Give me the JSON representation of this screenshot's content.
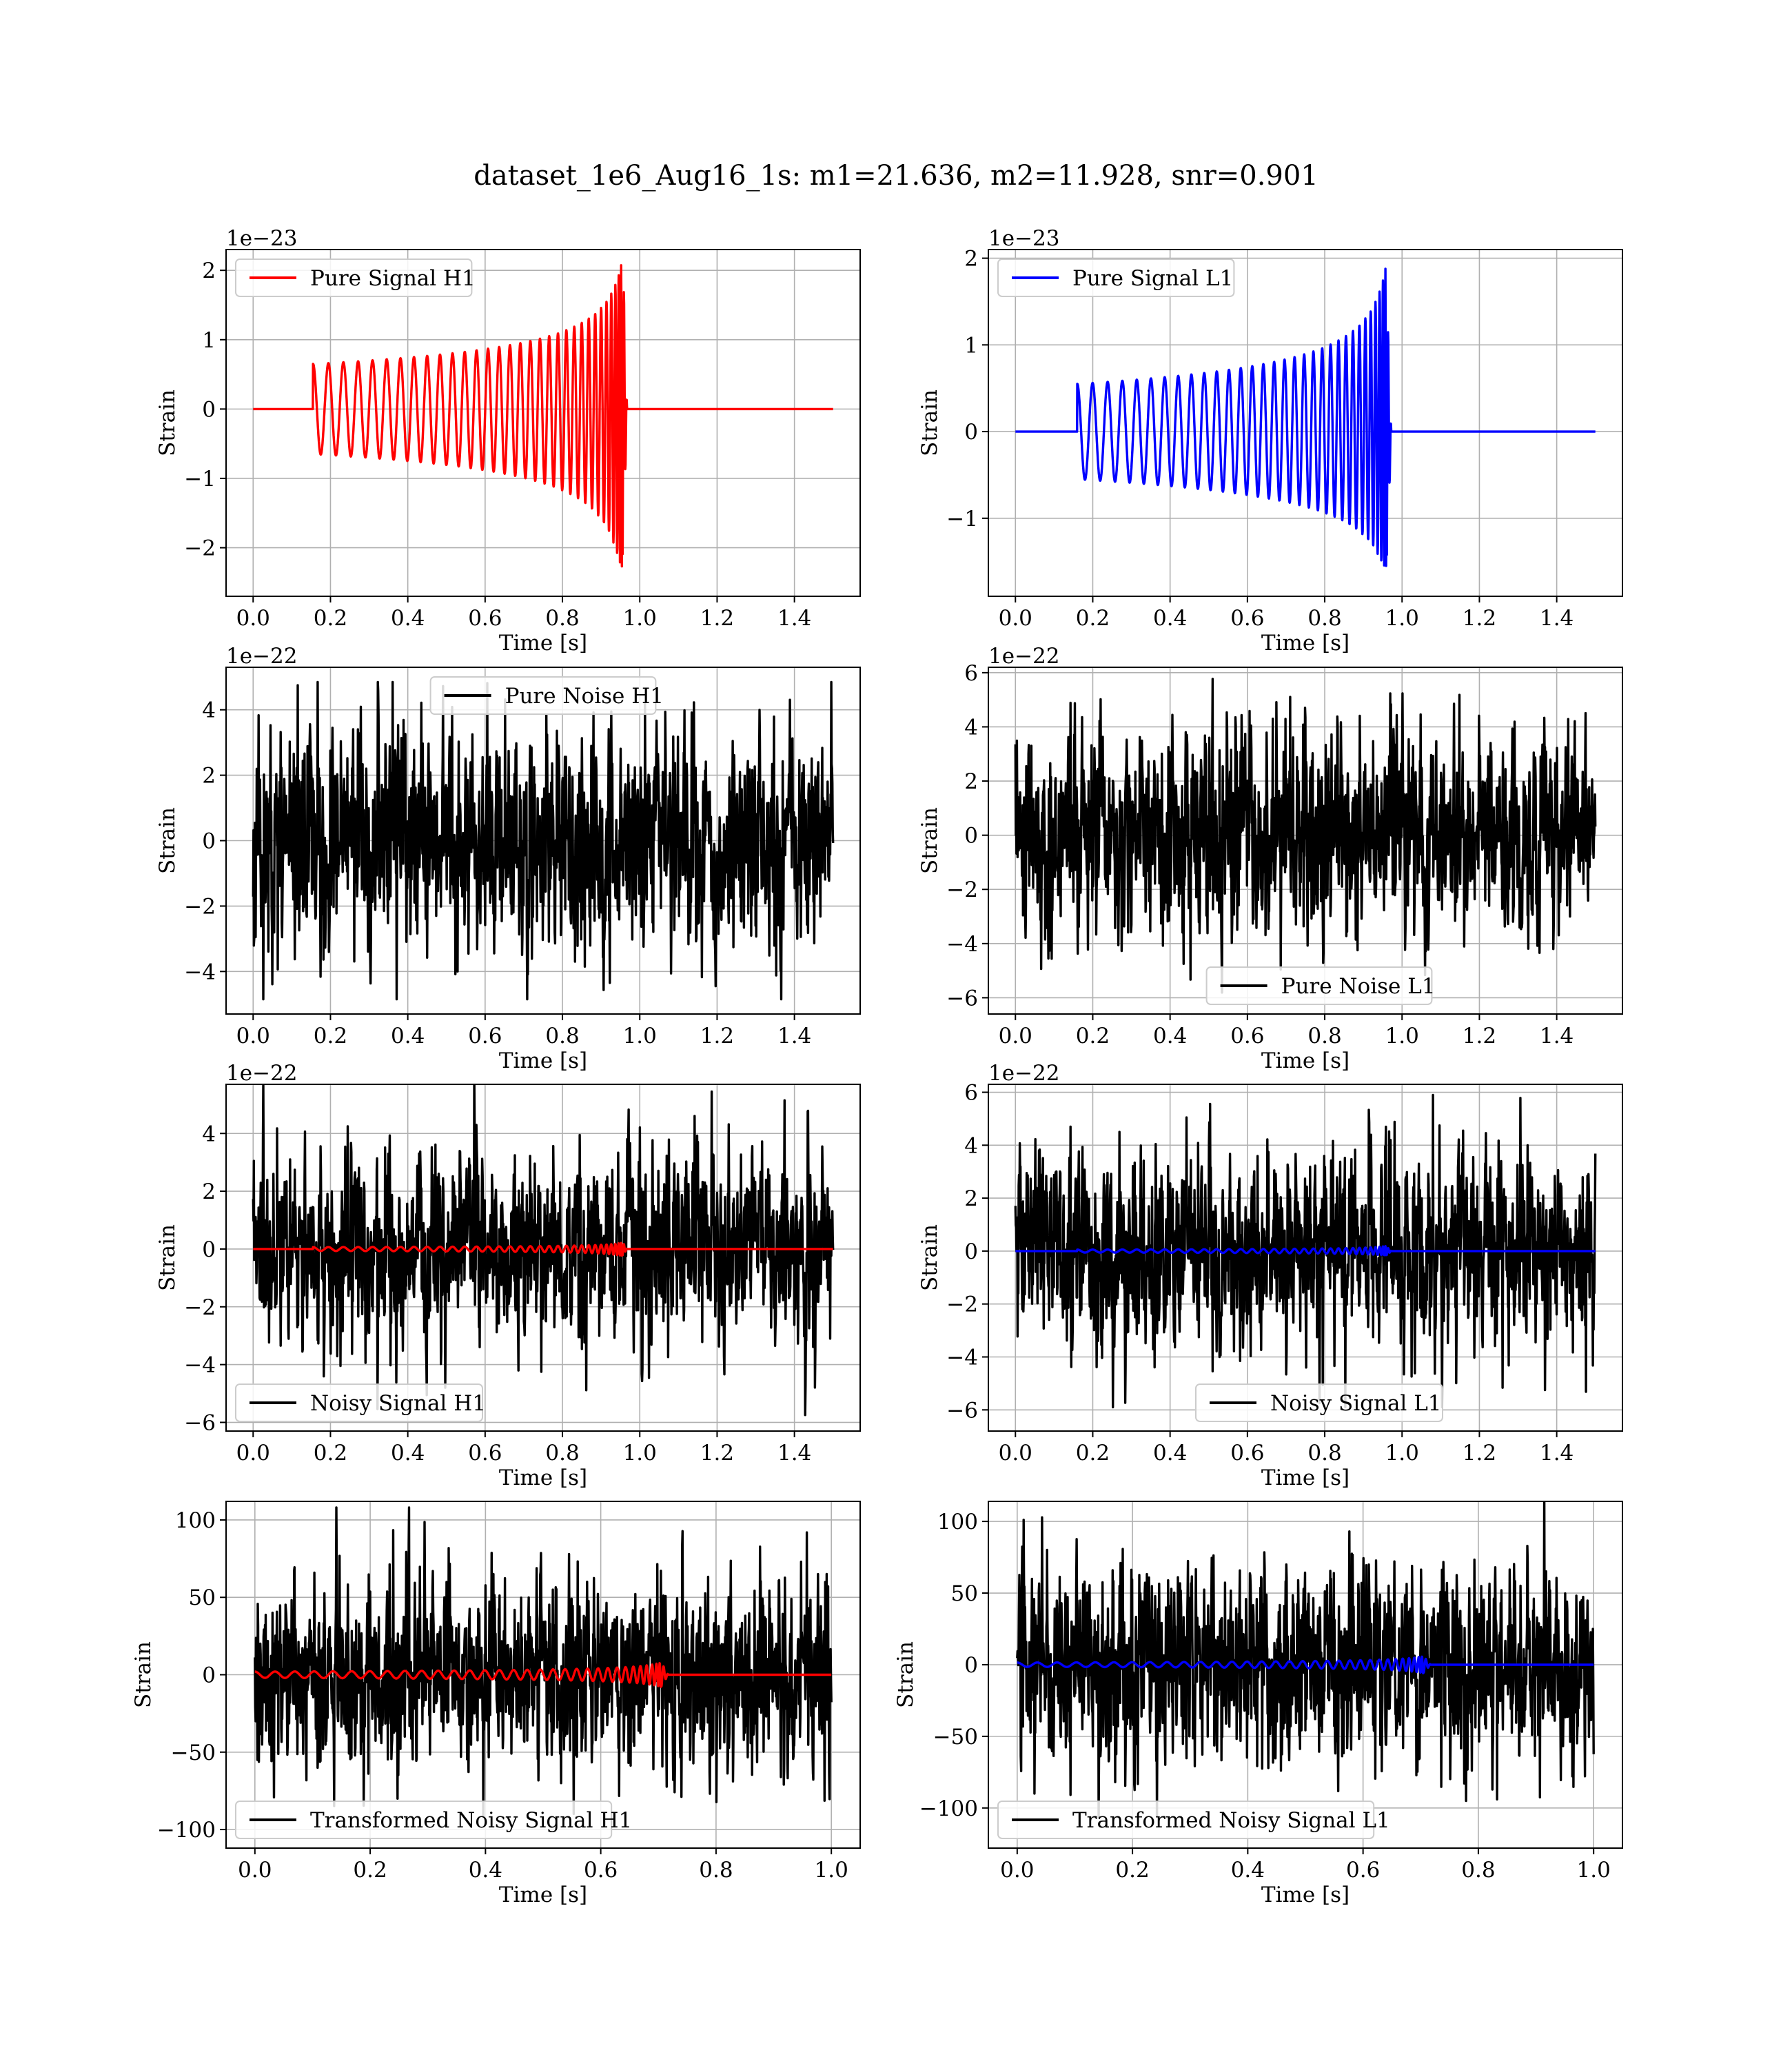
{
  "figure": {
    "title": "dataset_1e6_Aug16_1s: m1=21.636, m2=11.928, snr=0.901"
  },
  "colors": {
    "h1": "#ff0000",
    "l1": "#0000ff",
    "noise": "#000000"
  },
  "chart_data": [
    {
      "id": "pure-signal-h1",
      "type": "line",
      "xlabel": "Time [s]",
      "ylabel": "Strain",
      "offset_label": "1e−23",
      "xlim": [
        -0.07,
        1.57
      ],
      "ylim": [
        -2.7,
        2.3
      ],
      "xticks": [
        0.0,
        0.2,
        0.4,
        0.6,
        0.8,
        1.0,
        1.2,
        1.4
      ],
      "xtick_labels": [
        "0.0",
        "0.2",
        "0.4",
        "0.6",
        "0.8",
        "1.0",
        "1.2",
        "1.4"
      ],
      "yticks": [
        -2,
        -1,
        0,
        1,
        2
      ],
      "ytick_labels": [
        "−2",
        "−1",
        "0",
        "1",
        "2"
      ],
      "grid": true,
      "legend_position": "upper-left",
      "series": [
        {
          "name": "Pure Signal H1",
          "kind": "chirp",
          "color": "#ff0000",
          "x_range": [
            0.0,
            1.5
          ],
          "t_start": 0.155,
          "t_merge": 0.955,
          "amp_start": 0.65,
          "amp_peak_pos": 2.15,
          "amp_peak_neg": -2.5,
          "cycles": 32
        }
      ]
    },
    {
      "id": "pure-signal-l1",
      "type": "line",
      "xlabel": "Time [s]",
      "ylabel": "Strain",
      "offset_label": "1e−23",
      "xlim": [
        -0.07,
        1.57
      ],
      "ylim": [
        -1.9,
        2.1
      ],
      "xticks": [
        0.0,
        0.2,
        0.4,
        0.6,
        0.8,
        1.0,
        1.2,
        1.4
      ],
      "xtick_labels": [
        "0.0",
        "0.2",
        "0.4",
        "0.6",
        "0.8",
        "1.0",
        "1.2",
        "1.4"
      ],
      "yticks": [
        -1,
        0,
        1,
        2
      ],
      "ytick_labels": [
        "−1",
        "0",
        "1",
        "2"
      ],
      "grid": true,
      "legend_position": "upper-left",
      "series": [
        {
          "name": "Pure Signal L1",
          "kind": "chirp",
          "color": "#0000ff",
          "x_range": [
            0.0,
            1.5
          ],
          "t_start": 0.16,
          "t_merge": 0.96,
          "amp_start": 0.55,
          "amp_peak_pos": 1.95,
          "amp_peak_neg": -1.7,
          "cycles": 32
        }
      ]
    },
    {
      "id": "pure-noise-h1",
      "type": "line",
      "xlabel": "Time [s]",
      "ylabel": "Strain",
      "offset_label": "1e−22",
      "xlim": [
        -0.07,
        1.57
      ],
      "ylim": [
        -5.3,
        5.3
      ],
      "xticks": [
        0.0,
        0.2,
        0.4,
        0.6,
        0.8,
        1.0,
        1.2,
        1.4
      ],
      "xtick_labels": [
        "0.0",
        "0.2",
        "0.4",
        "0.6",
        "0.8",
        "1.0",
        "1.2",
        "1.4"
      ],
      "yticks": [
        -4,
        -2,
        0,
        2,
        4
      ],
      "ytick_labels": [
        "−4",
        "−2",
        "0",
        "2",
        "4"
      ],
      "grid": true,
      "legend_position": "upper-center",
      "series": [
        {
          "name": "Pure Noise H1",
          "kind": "noise",
          "color": "#000000",
          "x_range": [
            0.0,
            1.5
          ],
          "sigma": 1.6,
          "max_abs": 4.85,
          "seed": 11
        }
      ]
    },
    {
      "id": "pure-noise-l1",
      "type": "line",
      "xlabel": "Time [s]",
      "ylabel": "Strain",
      "offset_label": "1e−22",
      "xlim": [
        -0.07,
        1.57
      ],
      "ylim": [
        -6.6,
        6.2
      ],
      "xticks": [
        0.0,
        0.2,
        0.4,
        0.6,
        0.8,
        1.0,
        1.2,
        1.4
      ],
      "xtick_labels": [
        "0.0",
        "0.2",
        "0.4",
        "0.6",
        "0.8",
        "1.0",
        "1.2",
        "1.4"
      ],
      "yticks": [
        -6,
        -4,
        -2,
        0,
        2,
        4,
        6
      ],
      "ytick_labels": [
        "−6",
        "−4",
        "−2",
        "0",
        "2",
        "4",
        "6"
      ],
      "grid": true,
      "legend_position": "lower-center",
      "series": [
        {
          "name": "Pure Noise L1",
          "kind": "noise",
          "color": "#000000",
          "x_range": [
            0.0,
            1.5
          ],
          "sigma": 1.8,
          "max_abs": 6.0,
          "seed": 23
        }
      ]
    },
    {
      "id": "noisy-signal-h1",
      "type": "line",
      "xlabel": "Time [s]",
      "ylabel": "Strain",
      "offset_label": "1e−22",
      "xlim": [
        -0.07,
        1.57
      ],
      "ylim": [
        -6.3,
        5.7
      ],
      "xticks": [
        0.0,
        0.2,
        0.4,
        0.6,
        0.8,
        1.0,
        1.2,
        1.4
      ],
      "xtick_labels": [
        "0.0",
        "0.2",
        "0.4",
        "0.6",
        "0.8",
        "1.0",
        "1.2",
        "1.4"
      ],
      "yticks": [
        -6,
        -4,
        -2,
        0,
        2,
        4
      ],
      "ytick_labels": [
        "−6",
        "−4",
        "−2",
        "0",
        "2",
        "4"
      ],
      "grid": true,
      "legend_position": "lower-left",
      "series": [
        {
          "name": "Noisy Signal H1",
          "kind": "noise",
          "color": "#000000",
          "x_range": [
            0.0,
            1.5
          ],
          "sigma": 1.6,
          "max_abs": 6.0,
          "seed": 37
        },
        {
          "name": "",
          "kind": "chirp",
          "color": "#ff0000",
          "x_range": [
            0.0,
            1.5
          ],
          "t_start": 0.155,
          "t_merge": 0.955,
          "amp_start": 0.065,
          "amp_peak_pos": 0.215,
          "amp_peak_neg": -0.25,
          "cycles": 32
        }
      ]
    },
    {
      "id": "noisy-signal-l1",
      "type": "line",
      "xlabel": "Time [s]",
      "ylabel": "Strain",
      "offset_label": "1e−22",
      "xlim": [
        -0.07,
        1.57
      ],
      "ylim": [
        -6.8,
        6.3
      ],
      "xticks": [
        0.0,
        0.2,
        0.4,
        0.6,
        0.8,
        1.0,
        1.2,
        1.4
      ],
      "xtick_labels": [
        "0.0",
        "0.2",
        "0.4",
        "0.6",
        "0.8",
        "1.0",
        "1.2",
        "1.4"
      ],
      "yticks": [
        -6,
        -4,
        -2,
        0,
        2,
        4,
        6
      ],
      "ytick_labels": [
        "−6",
        "−4",
        "−2",
        "0",
        "2",
        "4",
        "6"
      ],
      "grid": true,
      "legend_position": "lower-center",
      "series": [
        {
          "name": "Noisy Signal L1",
          "kind": "noise",
          "color": "#000000",
          "x_range": [
            0.0,
            1.5
          ],
          "sigma": 1.8,
          "max_abs": 5.9,
          "seed": 53
        },
        {
          "name": "",
          "kind": "chirp",
          "color": "#0000ff",
          "x_range": [
            0.0,
            1.5
          ],
          "t_start": 0.16,
          "t_merge": 0.96,
          "amp_start": 0.055,
          "amp_peak_pos": 0.195,
          "amp_peak_neg": -0.17,
          "cycles": 32
        }
      ]
    },
    {
      "id": "transformed-noisy-signal-h1",
      "type": "line",
      "xlabel": "Time [s]",
      "ylabel": "Strain",
      "offset_label": "",
      "xlim": [
        -0.05,
        1.05
      ],
      "ylim": [
        -112,
        112
      ],
      "xticks": [
        0.0,
        0.2,
        0.4,
        0.6,
        0.8,
        1.0
      ],
      "xtick_labels": [
        "0.0",
        "0.2",
        "0.4",
        "0.6",
        "0.8",
        "1.0"
      ],
      "yticks": [
        -100,
        -50,
        0,
        50,
        100
      ],
      "ytick_labels": [
        "−100",
        "−50",
        "0",
        "50",
        "100"
      ],
      "grid": true,
      "legend_position": "lower-left",
      "series": [
        {
          "name": "Transformed Noisy Signal H1",
          "kind": "noise",
          "color": "#000000",
          "x_range": [
            0.0,
            1.0
          ],
          "sigma": 30,
          "max_abs": 108,
          "seed": 71
        },
        {
          "name": "",
          "kind": "chirp",
          "color": "#ff0000",
          "x_range": [
            0.0,
            1.0
          ],
          "t_start": 0.0,
          "t_merge": 0.705,
          "amp_start": 2.0,
          "amp_peak_pos": 8.0,
          "amp_peak_neg": -8.0,
          "cycles": 32
        }
      ]
    },
    {
      "id": "transformed-noisy-signal-l1",
      "type": "line",
      "xlabel": "Time [s]",
      "ylabel": "Strain",
      "offset_label": "",
      "xlim": [
        -0.05,
        1.05
      ],
      "ylim": [
        -128,
        114
      ],
      "xticks": [
        0.0,
        0.2,
        0.4,
        0.6,
        0.8,
        1.0
      ],
      "xtick_labels": [
        "0.0",
        "0.2",
        "0.4",
        "0.6",
        "0.8",
        "1.0"
      ],
      "yticks": [
        -100,
        -50,
        0,
        50,
        100
      ],
      "ytick_labels": [
        "−100",
        "−50",
        "0",
        "50",
        "100"
      ],
      "grid": true,
      "legend_position": "lower-left",
      "series": [
        {
          "name": "Transformed Noisy Signal L1",
          "kind": "noise",
          "color": "#000000",
          "x_range": [
            0.0,
            1.0
          ],
          "sigma": 32,
          "max_abs": 122,
          "seed": 89
        },
        {
          "name": "",
          "kind": "chirp",
          "color": "#0000ff",
          "x_range": [
            0.0,
            1.0
          ],
          "t_start": 0.0,
          "t_merge": 0.705,
          "amp_start": 1.5,
          "amp_peak_pos": 6.0,
          "amp_peak_neg": -6.0,
          "cycles": 32
        }
      ]
    }
  ]
}
